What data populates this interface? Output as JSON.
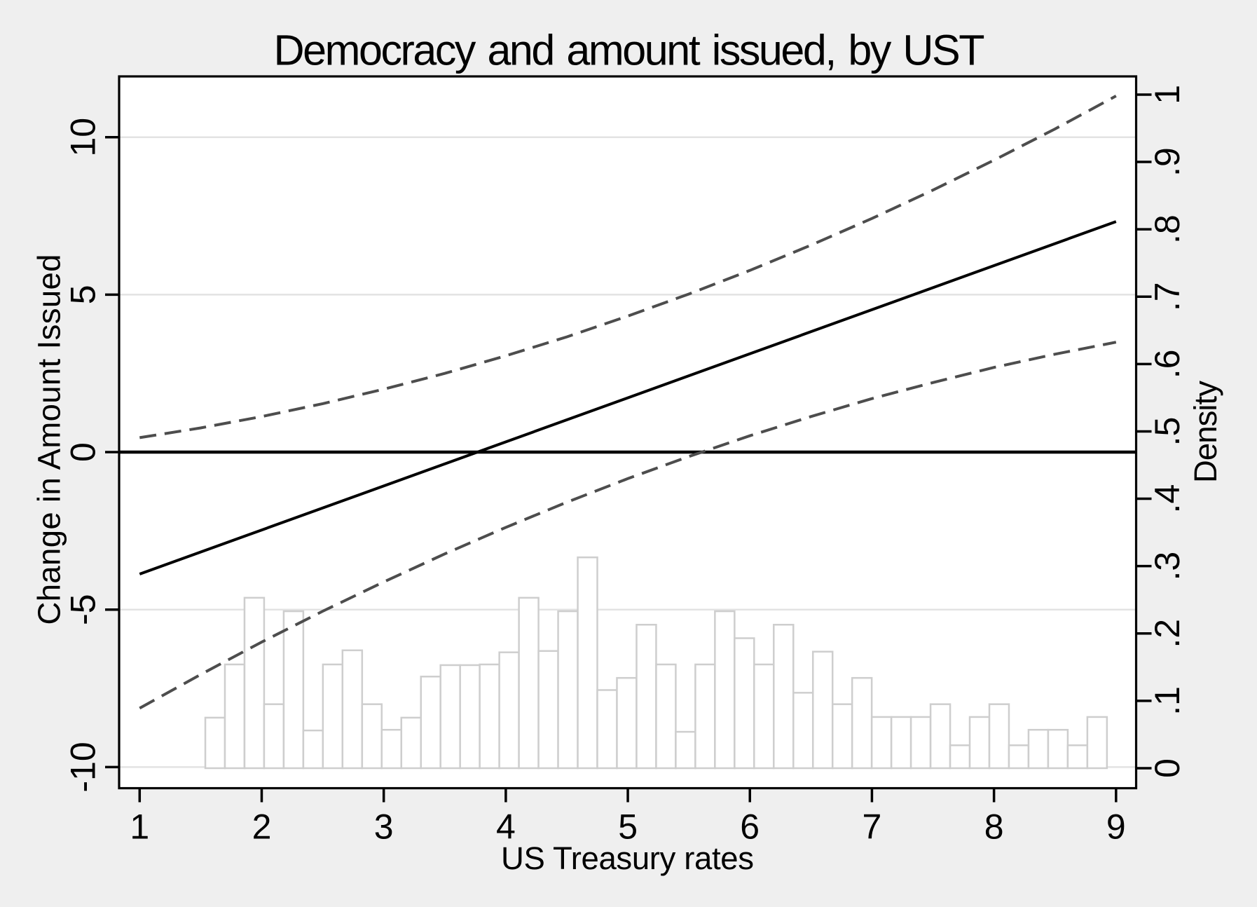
{
  "chart_data": {
    "type": "line",
    "title": "Democracy and amount issued, by UST",
    "x_axis": {
      "label": "US Treasury rates",
      "range": [
        0.8318,
        9.1647
      ],
      "ticks": [
        1,
        2,
        3,
        4,
        5,
        6,
        7,
        8,
        9
      ],
      "tick_labels": [
        "1",
        "2",
        "3",
        "4",
        "5",
        "6",
        "7",
        "8",
        "9"
      ]
    },
    "y_left_axis": {
      "label": "Change in Amount Issued",
      "range": [
        -10.67,
        11.93
      ],
      "ticks": [
        -10,
        -5,
        0,
        5,
        10
      ],
      "tick_labels": [
        "-10",
        "-5",
        "0",
        "5",
        "10"
      ],
      "grid": true
    },
    "y_right_axis": {
      "label": "Density",
      "range": [
        -0.0297,
        1.027
      ],
      "ticks": [
        0,
        0.1,
        0.2,
        0.3,
        0.4,
        0.5,
        0.6,
        0.7,
        0.8,
        0.9,
        1
      ],
      "tick_labels": [
        "0",
        ".1",
        ".2",
        ".3",
        ".4",
        ".5",
        ".6",
        ".7",
        ".8",
        ".9",
        "1"
      ],
      "grid": false
    },
    "reference_line_y": 0,
    "series": [
      {
        "name": "marginal-effect",
        "type": "line",
        "style": "solid",
        "axis": "left",
        "x": [
          1,
          9
        ],
        "y": [
          -3.87,
          7.32
        ]
      },
      {
        "name": "ci-upper",
        "type": "line",
        "style": "dashed",
        "axis": "left",
        "x": [
          1,
          1.5,
          2,
          2.5,
          3,
          3.5,
          4,
          4.5,
          5,
          5.5,
          6,
          6.5,
          7,
          7.5,
          8,
          8.5,
          9
        ],
        "y": [
          0.46,
          0.77,
          1.13,
          1.54,
          2.0,
          2.5,
          3.06,
          3.66,
          4.32,
          5.02,
          5.77,
          6.57,
          7.42,
          8.32,
          9.27,
          10.26,
          11.31
        ]
      },
      {
        "name": "ci-lower",
        "type": "line",
        "style": "dashed",
        "axis": "left",
        "x": [
          1,
          1.5,
          2,
          2.5,
          3,
          3.5,
          4,
          4.5,
          5,
          5.5,
          6,
          6.5,
          7,
          7.5,
          8,
          8.5,
          9
        ],
        "y": [
          -8.13,
          -7.06,
          -6.03,
          -5.05,
          -4.12,
          -3.23,
          -2.39,
          -1.59,
          -0.84,
          -0.14,
          0.52,
          1.13,
          1.7,
          2.21,
          2.69,
          3.11,
          3.49
        ]
      }
    ],
    "histogram": {
      "name": "ust-density",
      "axis": "right",
      "bin_start": 1.538,
      "bin_width": 0.1606,
      "densities": [
        0.075,
        0.154,
        0.253,
        0.095,
        0.233,
        0.056,
        0.154,
        0.175,
        0.095,
        0.057,
        0.075,
        0.136,
        0.153,
        0.153,
        0.154,
        0.172,
        0.253,
        0.174,
        0.233,
        0.313,
        0.116,
        0.134,
        0.213,
        0.154,
        0.054,
        0.154,
        0.233,
        0.193,
        0.154,
        0.213,
        0.112,
        0.173,
        0.095,
        0.134,
        0.076,
        0.076,
        0.076,
        0.095,
        0.034,
        0.076,
        0.095,
        0.034,
        0.057,
        0.057,
        0.034,
        0.076
      ]
    },
    "colors": {
      "background": "#efefef",
      "plot_background": "#ffffff",
      "grid": "#e3e3e3",
      "axis": "#000000",
      "line": "#000000",
      "ci_line": "#4d4d4d",
      "bar_fill": "#ffffff",
      "bar_border": "#cecece",
      "text": "#000000"
    }
  }
}
